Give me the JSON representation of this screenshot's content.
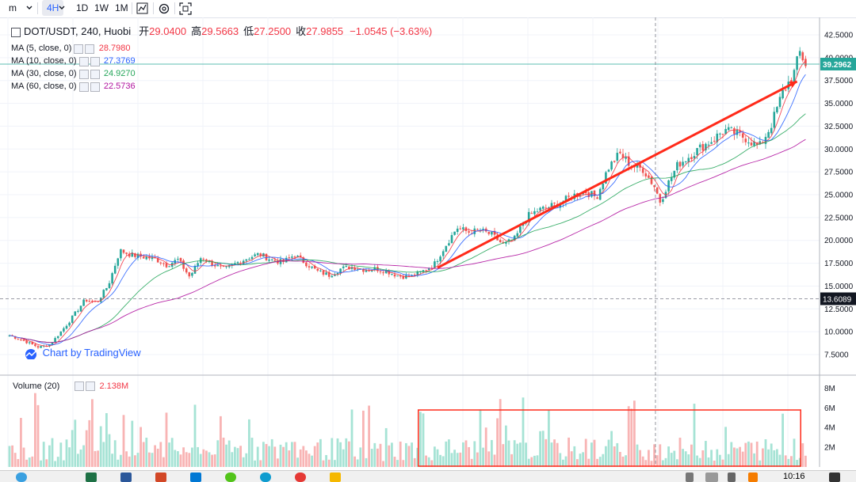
{
  "toolbar": {
    "interval_m": "m",
    "interval_4h": "4H",
    "interval_1d": "1D",
    "interval_1w": "1W",
    "interval_1m": "1M"
  },
  "legend": {
    "symbol": "DOT/USDT, 240, Huobi",
    "open_label": "开",
    "open": "29.0400",
    "high_label": "高",
    "high": "29.5663",
    "low_label": "低",
    "low": "27.2500",
    "close_label": "收",
    "close": "27.9855",
    "change": "−1.0545 (−3.63%)",
    "ma": [
      {
        "label": "MA (5, close, 0)",
        "value": "28.7980",
        "color": "#f23645"
      },
      {
        "label": "MA (10, close, 0)",
        "value": "27.3769",
        "color": "#2962ff"
      },
      {
        "label": "MA (30, close, 0)",
        "value": "24.9270",
        "color": "#26a65b"
      },
      {
        "label": "MA (60, close, 0)",
        "value": "22.5736",
        "color": "#b0129e"
      }
    ],
    "volume_label": "Volume (20)",
    "volume_value": "2.138M"
  },
  "watermark": "Chart by TradingView",
  "taskbar": {
    "time": "10:16"
  },
  "chart_data": {
    "type": "candlestick",
    "symbol": "DOT/USDT",
    "interval": "240",
    "exchange": "Huobi",
    "y_ticks": [
      "42.5000",
      "40.0000",
      "37.5000",
      "35.0000",
      "32.5000",
      "30.0000",
      "27.5000",
      "25.0000",
      "22.5000",
      "20.0000",
      "17.5000",
      "15.0000",
      "12.5000",
      "10.0000",
      "7.5000"
    ],
    "ylim": [
      5.2,
      44.5
    ],
    "price_labels": {
      "current": "39.2962",
      "crosshair": "13.6089"
    },
    "current_price": 39.2962,
    "crosshair_price": 13.6089,
    "volume_ticks": [
      "8M",
      "6M",
      "4M",
      "2M"
    ],
    "volume_ylim": [
      0,
      9
    ],
    "close_path": [
      [
        0,
        9.6
      ],
      [
        5,
        9.0
      ],
      [
        10,
        8.3
      ],
      [
        14,
        8.6
      ],
      [
        20,
        10.9
      ],
      [
        26,
        13.5
      ],
      [
        30,
        13.2
      ],
      [
        34,
        15.1
      ],
      [
        38,
        18.9
      ],
      [
        42,
        18.4
      ],
      [
        46,
        18.2
      ],
      [
        50,
        18.0
      ],
      [
        54,
        17.3
      ],
      [
        58,
        17.9
      ],
      [
        62,
        16.0
      ],
      [
        66,
        18.2
      ],
      [
        70,
        17.4
      ],
      [
        74,
        16.8
      ],
      [
        78,
        17.5
      ],
      [
        82,
        18.1
      ],
      [
        86,
        18.5
      ],
      [
        90,
        17.9
      ],
      [
        94,
        17.6
      ],
      [
        98,
        18.4
      ],
      [
        102,
        17.5
      ],
      [
        106,
        16.6
      ],
      [
        110,
        16.2
      ],
      [
        114,
        16.9
      ],
      [
        118,
        17.1
      ],
      [
        122,
        16.8
      ],
      [
        126,
        16.9
      ],
      [
        130,
        16.6
      ],
      [
        134,
        16.1
      ],
      [
        138,
        16.0
      ],
      [
        142,
        16.6
      ],
      [
        146,
        17.3
      ],
      [
        150,
        19.4
      ],
      [
        154,
        21.4
      ],
      [
        158,
        20.9
      ],
      [
        162,
        21.1
      ],
      [
        166,
        20.6
      ],
      [
        170,
        19.5
      ],
      [
        174,
        20.2
      ],
      [
        178,
        22.6
      ],
      [
        182,
        23.3
      ],
      [
        186,
        23.7
      ],
      [
        190,
        24.2
      ],
      [
        194,
        24.9
      ],
      [
        198,
        25.4
      ],
      [
        202,
        24.7
      ],
      [
        206,
        27.9
      ],
      [
        210,
        29.5
      ],
      [
        214,
        28.2
      ],
      [
        218,
        27.8
      ],
      [
        222,
        25.9
      ],
      [
        224,
        24.2
      ],
      [
        226,
        25.8
      ],
      [
        230,
        28.3
      ],
      [
        234,
        29.2
      ],
      [
        238,
        30.2
      ],
      [
        242,
        31.0
      ],
      [
        246,
        32.1
      ],
      [
        250,
        31.7
      ],
      [
        254,
        31.1
      ],
      [
        258,
        30.2
      ],
      [
        262,
        32.5
      ],
      [
        266,
        36.1
      ],
      [
        270,
        38.3
      ],
      [
        272,
        40.6
      ],
      [
        274,
        39.3
      ]
    ],
    "ma_values_last": {
      "MA5": 28.798,
      "MA10": 27.3769,
      "MA30": 24.927,
      "MA60": 22.5736
    },
    "annotations": [
      {
        "type": "trend_arrow",
        "color": "#ff2a1a",
        "from": [
          150,
          17.0
        ],
        "to": [
          276,
          37.4
        ]
      },
      {
        "type": "highlight_box",
        "color": "#ff2a1a",
        "panel": "volume",
        "from_bar": 143,
        "to_bar": 277
      }
    ]
  }
}
